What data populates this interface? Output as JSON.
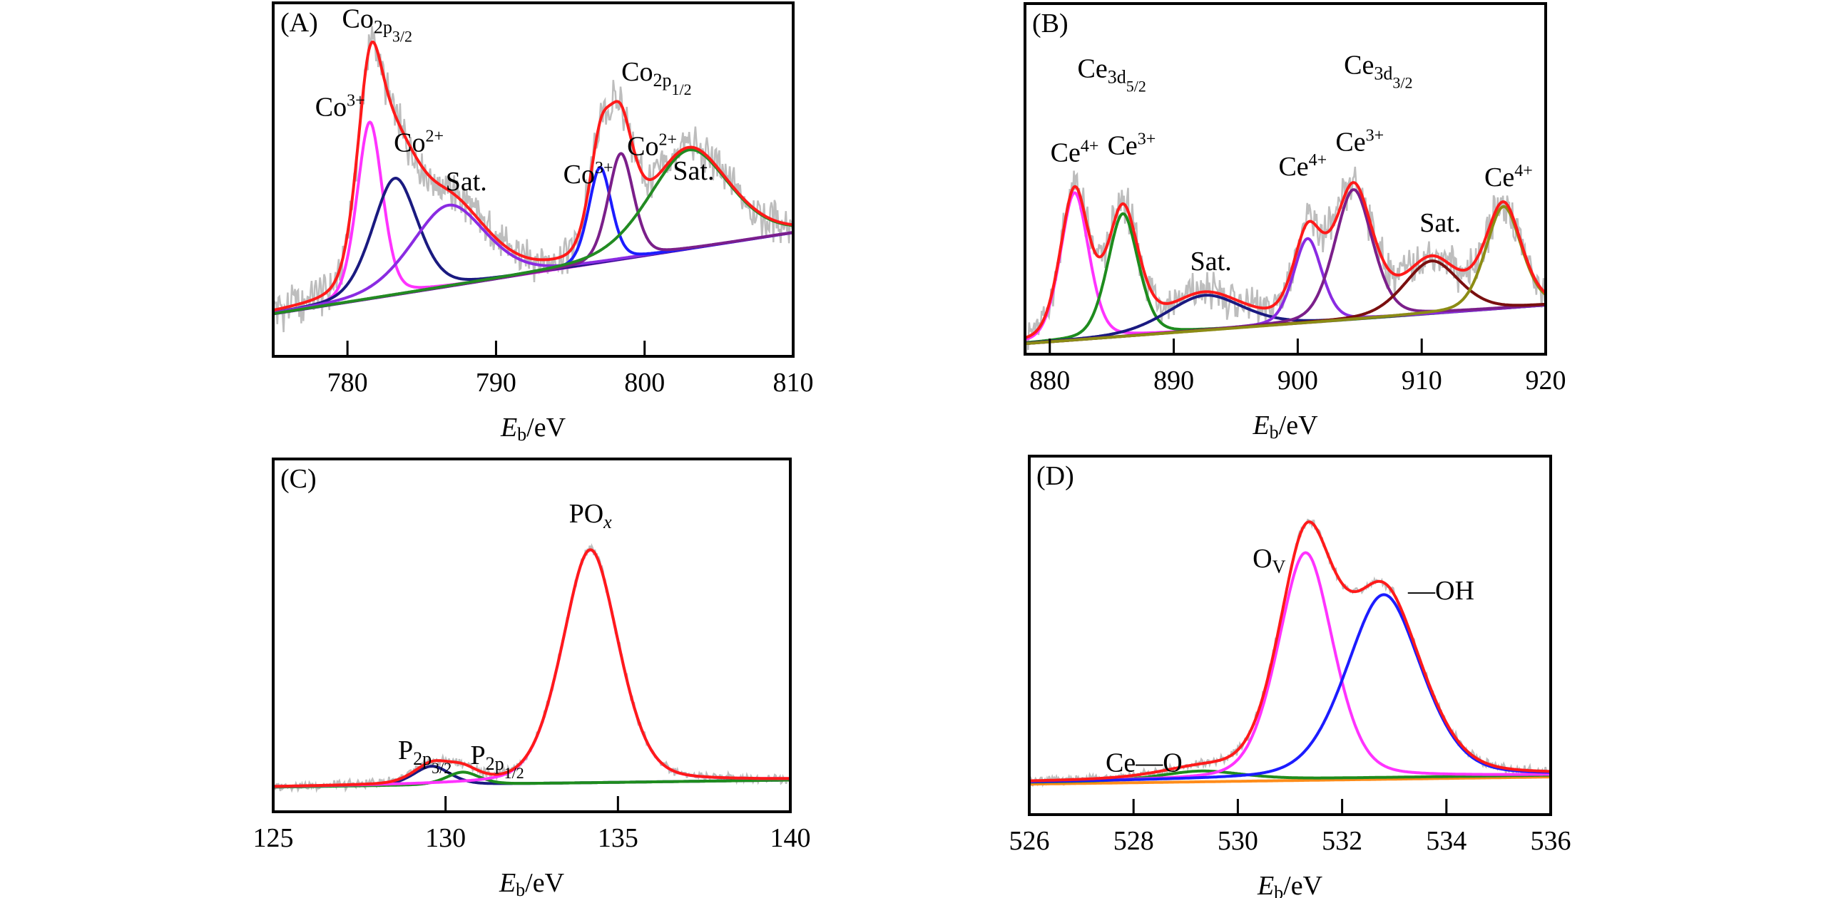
{
  "chart_data": [
    {
      "id": "A",
      "type": "line",
      "panel_label": "(A)",
      "title": "",
      "xlabel": "E_b/eV",
      "xlabel_italic": "E",
      "xlabel_sub": "b",
      "xlabel_rest": "/eV",
      "ylabel": "",
      "xlim": [
        775,
        810
      ],
      "ylim": [
        0,
        1
      ],
      "xticks": [
        780,
        790,
        800,
        810
      ],
      "grid": false,
      "baseline": {
        "start": 0.12,
        "end": 0.35
      },
      "series": [
        {
          "name": "Co3+ (2p3/2)",
          "color": "#ff33ff",
          "center": 781.5,
          "height": 0.5,
          "width": 0.9
        },
        {
          "name": "Co2+ (2p3/2)",
          "color": "#1a1a80",
          "center": 783.2,
          "height": 0.33,
          "width": 1.6
        },
        {
          "name": "Sat. (2p3/2)",
          "color": "#8a2be2",
          "center": 786.8,
          "height": 0.23,
          "width": 2.6
        },
        {
          "name": "Co3+ (2p1/2)",
          "color": "#1c1cff",
          "center": 797.0,
          "height": 0.27,
          "width": 0.8
        },
        {
          "name": "Co2+ (2p1/2)",
          "color": "#7b1f8a",
          "center": 798.4,
          "height": 0.3,
          "width": 0.9
        },
        {
          "name": "Sat. (2p1/2)",
          "color": "#228b22",
          "center": 803.0,
          "height": 0.28,
          "width": 2.8
        },
        {
          "name": "Envelope",
          "color": "#ff1a1a",
          "role": "sum"
        },
        {
          "name": "Raw data",
          "color": "#bdbdbd",
          "role": "raw"
        }
      ],
      "annotations": [
        {
          "text": "Co",
          "sub": "2p",
          "subsub": "3/2",
          "x": 782.0,
          "y": 0.93
        },
        {
          "text": "Co",
          "sup": "3+",
          "x": 779.5,
          "y": 0.68
        },
        {
          "text": "Co",
          "sup": "2+",
          "x": 784.8,
          "y": 0.58
        },
        {
          "text": "Sat.",
          "x": 788.0,
          "y": 0.47
        },
        {
          "text": "Co",
          "sub": "2p",
          "subsub": "1/2",
          "x": 800.8,
          "y": 0.78
        },
        {
          "text": "Co",
          "sup": "3+",
          "x": 796.2,
          "y": 0.49
        },
        {
          "text": "Co",
          "sup": "2+",
          "x": 800.5,
          "y": 0.57
        },
        {
          "text": "Sat.",
          "x": 803.3,
          "y": 0.5
        }
      ]
    },
    {
      "id": "B",
      "type": "line",
      "panel_label": "(B)",
      "title": "",
      "xlabel": "E_b/eV",
      "xlabel_italic": "E",
      "xlabel_sub": "b",
      "xlabel_rest": "/eV",
      "ylabel": "",
      "xlim": [
        878,
        920
      ],
      "ylim": [
        0,
        1
      ],
      "xticks": [
        880,
        890,
        900,
        910,
        920
      ],
      "grid": false,
      "baseline": {
        "start": 0.03,
        "end": 0.14
      },
      "series": [
        {
          "name": "Ce4+ (3d5/2)",
          "color": "#ff33ff",
          "center": 882.0,
          "height": 0.42,
          "width": 1.2
        },
        {
          "name": "Ce3+ (3d5/2)",
          "color": "#1e8c1e",
          "center": 885.9,
          "height": 0.35,
          "width": 1.3
        },
        {
          "name": "Sat. (3d5/2)",
          "color": "#1a1a80",
          "center": 892.5,
          "height": 0.1,
          "width": 3.2
        },
        {
          "name": "Ce4+ (3d3/2)",
          "color": "#8a2be2",
          "center": 900.8,
          "height": 0.24,
          "width": 1.2
        },
        {
          "name": "Ce3+ (3d3/2)",
          "color": "#7b1f8a",
          "center": 904.5,
          "height": 0.37,
          "width": 1.6
        },
        {
          "name": "Sat. (3d3/2)",
          "color": "#7a0f0f",
          "center": 910.8,
          "height": 0.15,
          "width": 2.3
        },
        {
          "name": "Ce4+ (u''')",
          "color": "#8c8c14",
          "center": 916.6,
          "height": 0.29,
          "width": 1.5
        },
        {
          "name": "Envelope",
          "color": "#ff1a1a",
          "role": "sum"
        },
        {
          "name": "Raw data",
          "color": "#bdbdbd",
          "role": "raw"
        }
      ],
      "annotations": [
        {
          "text": "Ce",
          "sub": "3d",
          "subsub": "5/2",
          "x": 885.0,
          "y": 0.79
        },
        {
          "text": "Ce",
          "sup": "4+",
          "x": 882.0,
          "y": 0.55
        },
        {
          "text": "Ce",
          "sup": "3+",
          "x": 886.6,
          "y": 0.57
        },
        {
          "text": "Sat.",
          "x": 893.0,
          "y": 0.24
        },
        {
          "text": "Ce",
          "sub": "3d",
          "subsub": "3/2",
          "x": 906.5,
          "y": 0.8
        },
        {
          "text": "Ce",
          "sup": "4+",
          "x": 900.4,
          "y": 0.51
        },
        {
          "text": "Ce",
          "sup": "3+",
          "x": 905.0,
          "y": 0.58
        },
        {
          "text": "Sat.",
          "x": 911.5,
          "y": 0.35
        },
        {
          "text": "Ce",
          "sup": "4+",
          "x": 917.0,
          "y": 0.48
        }
      ]
    },
    {
      "id": "C",
      "type": "line",
      "panel_label": "(C)",
      "title": "",
      "xlabel": "E_b/eV",
      "xlabel_italic": "E",
      "xlabel_sub": "b",
      "xlabel_rest": "/eV",
      "ylabel": "",
      "xlim": [
        125,
        140
      ],
      "ylim": [
        0,
        1
      ],
      "xticks": [
        125,
        130,
        135,
        140
      ],
      "grid": false,
      "baseline": {
        "start": 0.07,
        "end": 0.09
      },
      "series": [
        {
          "name": "P2p3/2",
          "color": "#1a1a80",
          "center": 129.6,
          "height": 0.053,
          "width": 0.55
        },
        {
          "name": "P2p1/2",
          "color": "#1e8c1e",
          "center": 130.5,
          "height": 0.035,
          "width": 0.5
        },
        {
          "name": "POx",
          "color": "#ff33ff",
          "center": 134.2,
          "height": 0.66,
          "width": 0.85
        },
        {
          "name": "Envelope",
          "color": "#ff1a1a",
          "role": "sum"
        },
        {
          "name": "Raw data",
          "color": "#8c8c8c",
          "role": "raw"
        }
      ],
      "annotations": [
        {
          "text": "PO",
          "subital": "x",
          "x": 134.2,
          "y": 0.82
        },
        {
          "text": "P",
          "sub": "2p",
          "subsub": "3/2",
          "x": 129.4,
          "y": 0.15
        },
        {
          "text": "P",
          "sub": "2p",
          "subsub": "1/2",
          "x": 131.5,
          "y": 0.135
        }
      ]
    },
    {
      "id": "D",
      "type": "line",
      "panel_label": "(D)",
      "title": "",
      "xlabel": "E_b/eV",
      "xlabel_italic": "E",
      "xlabel_sub": "b",
      "xlabel_rest": "/eV",
      "ylabel": "",
      "xlim": [
        526,
        536
      ],
      "ylim": [
        0,
        1
      ],
      "xticks": [
        526,
        528,
        530,
        532,
        534,
        536
      ],
      "grid": false,
      "baseline": {
        "start": 0.09,
        "end": 0.11
      },
      "series": [
        {
          "name": "Ce—O",
          "color": "#1e8c1e",
          "center": 529.3,
          "height": 0.025,
          "width": 0.8
        },
        {
          "name": "OV",
          "color": "#ff33ff",
          "center": 531.3,
          "height": 0.63,
          "width": 0.55
        },
        {
          "name": "—OH",
          "color": "#1c1cff",
          "center": 532.8,
          "height": 0.51,
          "width": 0.75
        },
        {
          "name": "Background",
          "color": "#ff8c1a",
          "role": "background"
        },
        {
          "name": "Envelope",
          "color": "#ff1a1a",
          "role": "sum"
        },
        {
          "name": "Raw data",
          "color": "#8c8c8c",
          "role": "raw"
        }
      ],
      "annotations": [
        {
          "text": "O",
          "sub": "V",
          "x": 530.6,
          "y": 0.69
        },
        {
          "text": "—OH",
          "x": 533.9,
          "y": 0.6
        },
        {
          "text": "Ce—O",
          "x": 528.2,
          "y": 0.12
        }
      ]
    }
  ]
}
